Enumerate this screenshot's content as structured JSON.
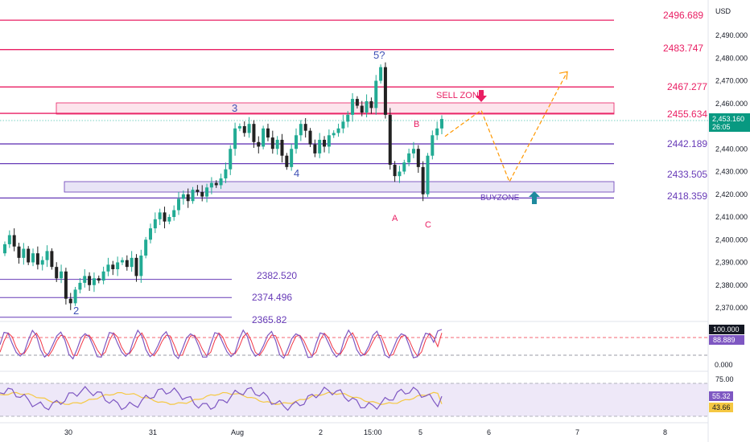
{
  "currency": "USD",
  "colors": {
    "up": "#22ab94",
    "down": "#222222",
    "resistance": "#e91e63",
    "support": "#673ab7",
    "price_tag": "#089981",
    "stoch_k": "#7e57c2",
    "stoch_d": "#f23645",
    "rsi": "#7e57c2",
    "rsi_ma": "#f5c842",
    "projection": "#ff9800"
  },
  "chart_data": [
    {
      "type": "candlestick",
      "y_axis_ticks": [
        "2,490.000",
        "2,480.000",
        "2,470.000",
        "2,460.000",
        "2,450.000",
        "2,440.000",
        "2,430.000",
        "2,420.000",
        "2,410.000",
        "2,400.000",
        "2,390.000",
        "2,380.000",
        "2,370.000"
      ],
      "ylim": [
        2364,
        2502
      ],
      "x_ticks": [
        "30",
        "31",
        "Aug",
        "2",
        "15:00",
        "5",
        "6",
        "7",
        "8"
      ],
      "resistance_levels": [
        {
          "label": "2496.689",
          "value": 2496.689
        },
        {
          "label": "2483.747",
          "value": 2483.747
        },
        {
          "label": "2467.277",
          "value": 2467.277
        },
        {
          "label": "2455.634",
          "value": 2455.634
        }
      ],
      "support_levels": [
        {
          "label": "2442.189",
          "value": 2442.189
        },
        {
          "label": "2433.505",
          "value": 2433.505
        },
        {
          "label": "2418.359",
          "value": 2418.359
        }
      ],
      "short_levels": [
        {
          "label": "2382.520",
          "value": 2382.52
        },
        {
          "label": "2374.496",
          "value": 2374.496
        },
        {
          "label": "2365.82",
          "value": 2365.82
        }
      ],
      "zones": [
        {
          "label": "SELL ZONE",
          "low": 2454.6,
          "high": 2459.2
        },
        {
          "label": "BUYZONE",
          "low": 2423.1,
          "high": 2427.0
        }
      ],
      "wave_labels": [
        "2",
        "3",
        "4",
        "5?",
        "A",
        "B",
        "C"
      ],
      "last_price": "2,453.160",
      "countdown": "26:05",
      "projection_path": [
        2445.5,
        2457.0,
        2425.5,
        2474.0
      ],
      "closes": [
        2398,
        2402,
        2397,
        2392,
        2396,
        2390,
        2394,
        2389,
        2391,
        2395,
        2388,
        2383,
        2386,
        2374,
        2372,
        2378,
        2381,
        2384,
        2380,
        2383,
        2382,
        2386,
        2389,
        2387,
        2390,
        2391,
        2388,
        2392,
        2384,
        2393,
        2400,
        2405,
        2409,
        2412,
        2408,
        2410,
        2413,
        2418,
        2420,
        2417,
        2422,
        2421,
        2419,
        2423,
        2425,
        2424,
        2427,
        2431,
        2440,
        2449,
        2450,
        2447,
        2451,
        2443,
        2441,
        2449,
        2445,
        2440,
        2444,
        2437,
        2432,
        2440,
        2446,
        2451,
        2448,
        2442,
        2438,
        2444,
        2441,
        2446,
        2447,
        2449,
        2452,
        2455,
        2462,
        2459,
        2456,
        2461,
        2458,
        2470,
        2476,
        2455,
        2433,
        2428,
        2430,
        2434,
        2438,
        2440,
        2432,
        2420,
        2437,
        2446,
        2449,
        2453.16
      ],
      "stochastic": {
        "values": [
          "100.000",
          "88.889"
        ],
        "levels": [
          "80",
          "20"
        ],
        "axis_ticks": [
          "0.000"
        ]
      },
      "rsi": {
        "values": [
          "55.32",
          "43.66"
        ],
        "axis_ticks": [
          "75.00",
          "25.00"
        ]
      }
    }
  ]
}
